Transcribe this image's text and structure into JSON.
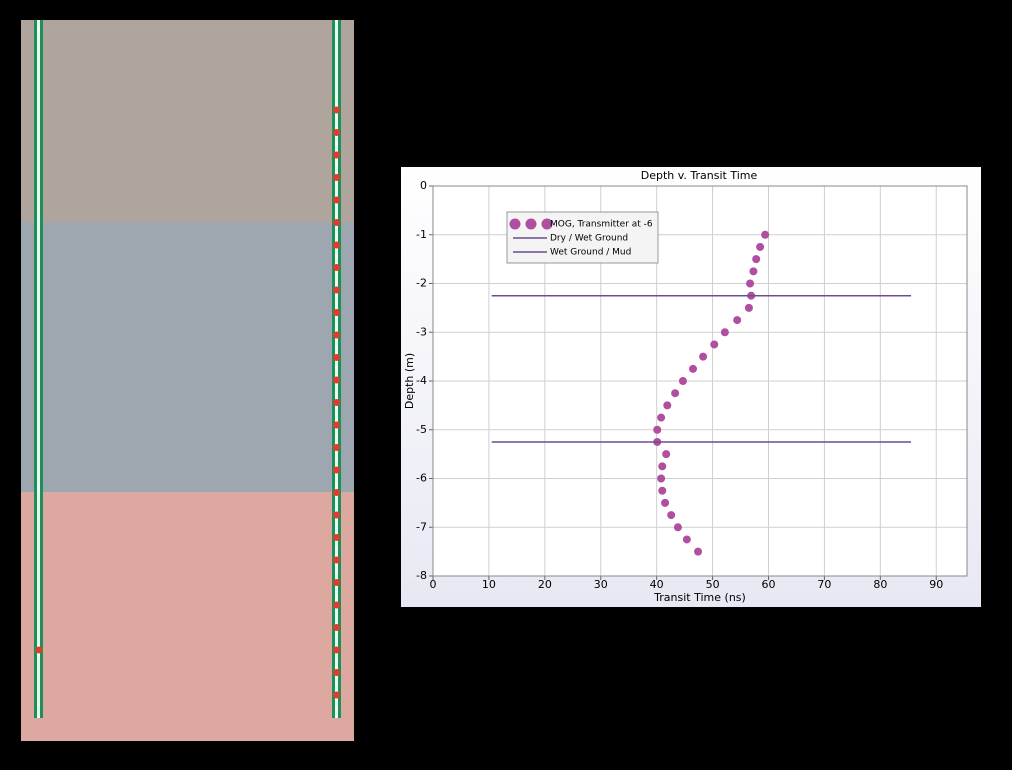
{
  "chart_data": {
    "type": "scatter",
    "title": "Depth v. Transit Time",
    "x_label": "Transit Time (ns)",
    "y_label": "Depth (m)",
    "xlim": [
      0,
      95.5
    ],
    "ylim": [
      -8,
      0
    ],
    "xticks": [
      0,
      10,
      20,
      30,
      40,
      50,
      60,
      70,
      80,
      90
    ],
    "yticks": [
      0,
      -1,
      -2,
      -3,
      -4,
      -5,
      -6,
      -7,
      -8
    ],
    "grid": true,
    "legend": "upper left",
    "series": [
      {
        "name": "MOG, Transmitter at -6",
        "type": "scatter",
        "color": "#b04fa0",
        "x": [
          59.4,
          58.5,
          57.8,
          57.3,
          56.7,
          56.9,
          56.5,
          54.4,
          52.2,
          50.3,
          48.3,
          46.5,
          44.7,
          43.3,
          41.9,
          40.8,
          40.1,
          40.1,
          41.7,
          41.0,
          40.8,
          41.0,
          41.5,
          42.6,
          43.8,
          45.4,
          47.4
        ],
        "values": [
          -1,
          -1.25,
          -1.5,
          -1.75,
          -2,
          -2.25,
          -2.5,
          -2.75,
          -3,
          -3.25,
          -3.5,
          -3.75,
          -4,
          -4.25,
          -4.5,
          -4.75,
          -5,
          -5.25,
          -5.5,
          -5.75,
          -6,
          -6.25,
          -6.5,
          -6.75,
          -7,
          -7.25,
          -7.5
        ]
      },
      {
        "name": "Dry / Wet Ground",
        "type": "line",
        "color": "#6a4f8f",
        "x": [
          10.5,
          85.5
        ],
        "values": [
          -2.25,
          -2.25
        ]
      },
      {
        "name": "Wet Ground / Mud",
        "type": "line",
        "color": "#6a4f8f",
        "x": [
          10.5,
          85.5
        ],
        "values": [
          -5.25,
          -5.25
        ]
      }
    ]
  }
}
